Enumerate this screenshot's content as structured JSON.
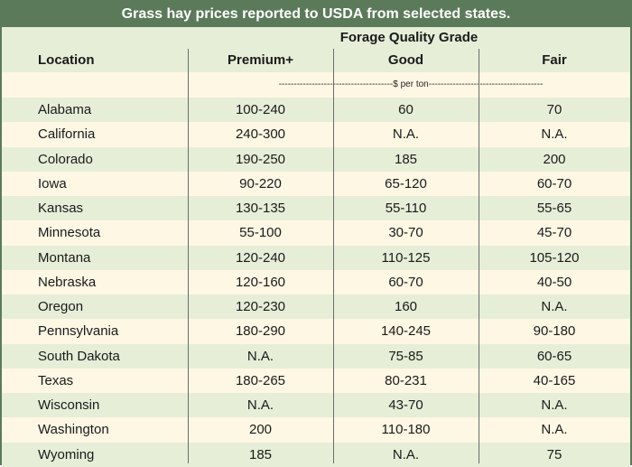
{
  "title": "Grass hay prices reported to USDA from selected states.",
  "header": {
    "group": "Forage Quality Grade",
    "location": "Location",
    "premium": "Premium+",
    "good": "Good",
    "fair": "Fair"
  },
  "units": "--------------------------------------$ per ton--------------------------------------",
  "rows": [
    {
      "location": "Alabama",
      "premium": "100-240",
      "good": "60",
      "fair": "70"
    },
    {
      "location": "California",
      "premium": "240-300",
      "good": "N.A.",
      "fair": "N.A."
    },
    {
      "location": "Colorado",
      "premium": "190-250",
      "good": "185",
      "fair": "200"
    },
    {
      "location": "Iowa",
      "premium": "90-220",
      "good": "65-120",
      "fair": "60-70"
    },
    {
      "location": "Kansas",
      "premium": "130-135",
      "good": "55-110",
      "fair": "55-65"
    },
    {
      "location": "Minnesota",
      "premium": "55-100",
      "good": "30-70",
      "fair": "45-70"
    },
    {
      "location": "Montana",
      "premium": "120-240",
      "good": "110-125",
      "fair": "105-120"
    },
    {
      "location": "Nebraska",
      "premium": "120-160",
      "good": "60-70",
      "fair": "40-50"
    },
    {
      "location": "Oregon",
      "premium": "120-230",
      "good": "160",
      "fair": "N.A."
    },
    {
      "location": "Pennsylvania",
      "premium": "180-290",
      "good": "140-245",
      "fair": "90-180"
    },
    {
      "location": "South Dakota",
      "premium": "N.A.",
      "good": "75-85",
      "fair": "60-65"
    },
    {
      "location": "Texas",
      "premium": "180-265",
      "good": "80-231",
      "fair": "40-165"
    },
    {
      "location": "Wisconsin",
      "premium": "N.A.",
      "good": "43-70",
      "fair": "N.A."
    },
    {
      "location": "Washington",
      "premium": "200",
      "good": "110-180",
      "fair": "N.A."
    },
    {
      "location": "Wyoming",
      "premium": "185",
      "good": "N.A.",
      "fair": "75"
    }
  ],
  "colors": {
    "title_bg": "#5b7a5a",
    "stripe": "#e6eed8",
    "cream": "#fdf7e4"
  }
}
